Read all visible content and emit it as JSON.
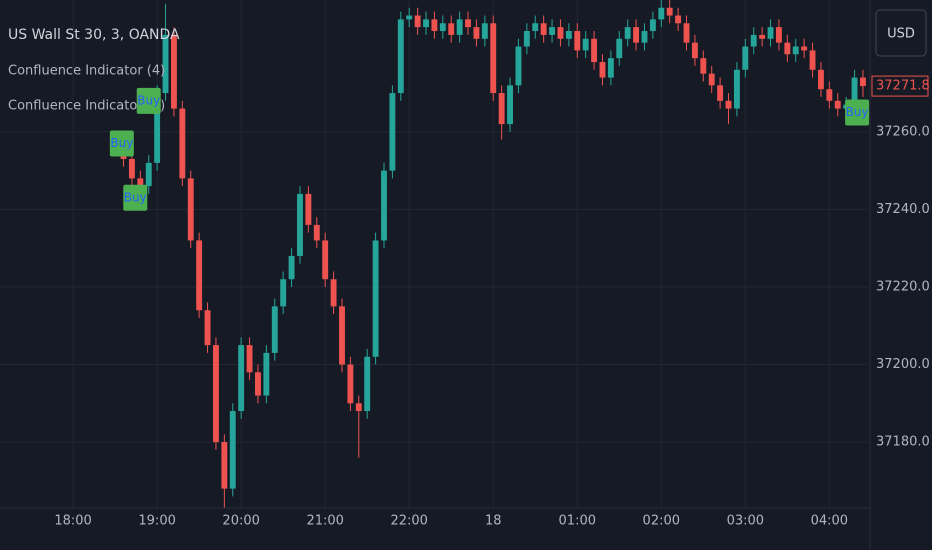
{
  "chart_data": {
    "type": "candlestick",
    "title": "US Wall St 30, 3, OANDA",
    "indicators": [
      "Confluence Indicator (4)",
      "Confluence Indicator (4)"
    ],
    "currency": "USD",
    "up_color": "#26a69a",
    "down_color": "#ef5350",
    "x": [
      0.5,
      0.6,
      0.7,
      0.8,
      0.9,
      1.0,
      1.1,
      1.2,
      1.3,
      1.4,
      1.5,
      1.6,
      1.7,
      1.8,
      1.9,
      2.0,
      2.1,
      2.2,
      2.3,
      2.4,
      2.5,
      2.6,
      2.7,
      2.8,
      2.9,
      3.0,
      3.1,
      3.2,
      3.3,
      3.4,
      3.5,
      3.6,
      3.7,
      3.8,
      3.9,
      4.0,
      4.1,
      4.2,
      4.3,
      4.4,
      4.5,
      4.6,
      4.7,
      4.8,
      4.9,
      5.0,
      5.1,
      5.2,
      5.3,
      5.4,
      5.5,
      5.6,
      5.7,
      5.8,
      5.9,
      6.0,
      6.1,
      6.2,
      6.3,
      6.4,
      6.5,
      6.6,
      6.7,
      6.8,
      6.9,
      7.0,
      7.1,
      7.2,
      7.3,
      7.4,
      7.5,
      7.6,
      7.7,
      7.8,
      7.9,
      8.0,
      8.1,
      8.2,
      8.3,
      8.4,
      8.5,
      8.6,
      8.7,
      8.8,
      8.9,
      9.0,
      9.1,
      9.2,
      9.3,
      9.4
    ],
    "open": [
      37258,
      37256,
      37253,
      37248,
      37246,
      37252,
      37270,
      37285,
      37266,
      37248,
      37232,
      37214,
      37205,
      37180,
      37168,
      37188,
      37205,
      37198,
      37192,
      37203,
      37215,
      37222,
      37228,
      37244,
      37236,
      37232,
      37222,
      37215,
      37200,
      37190,
      37188,
      37202,
      37232,
      37250,
      37270,
      37289,
      37290,
      37287,
      37289,
      37286,
      37288,
      37285,
      37289,
      37287,
      37284,
      37288,
      37270,
      37262,
      37272,
      37282,
      37286,
      37288,
      37285,
      37287,
      37284,
      37286,
      37281,
      37284,
      37278,
      37274,
      37279,
      37284,
      37287,
      37283,
      37286,
      37289,
      37292,
      37290,
      37288,
      37283,
      37279,
      37275,
      37272,
      37268,
      37266,
      37276,
      37282,
      37285,
      37284,
      37287,
      37283,
      37280,
      37282,
      37281,
      37276,
      37271,
      37268,
      37266,
      37267,
      37274
    ],
    "high": [
      37260,
      37258,
      37255,
      37250,
      37254,
      37272,
      37293,
      37287,
      37268,
      37250,
      37234,
      37216,
      37207,
      37182,
      37190,
      37207,
      37207,
      37200,
      37205,
      37217,
      37224,
      37230,
      37246,
      37246,
      37238,
      37234,
      37224,
      37217,
      37202,
      37192,
      37204,
      37234,
      37252,
      37272,
      37291,
      37292,
      37292,
      37291,
      37291,
      37290,
      37290,
      37291,
      37291,
      37289,
      37290,
      37290,
      37272,
      37274,
      37284,
      37288,
      37290,
      37290,
      37289,
      37289,
      37288,
      37288,
      37286,
      37286,
      37280,
      37281,
      37286,
      37289,
      37289,
      37288,
      37291,
      37294,
      37294,
      37292,
      37290,
      37285,
      37281,
      37277,
      37274,
      37270,
      37278,
      37284,
      37287,
      37287,
      37289,
      37289,
      37285,
      37284,
      37284,
      37283,
      37278,
      37273,
      37270,
      37269,
      37276,
      37276
    ],
    "low": [
      37254,
      37251,
      37246,
      37244,
      37244,
      37250,
      37268,
      37264,
      37246,
      37230,
      37212,
      37203,
      37178,
      37163,
      37166,
      37186,
      37196,
      37190,
      37190,
      37201,
      37213,
      37220,
      37226,
      37234,
      37230,
      37220,
      37213,
      37198,
      37188,
      37176,
      37186,
      37200,
      37230,
      37248,
      37268,
      37287,
      37285,
      37285,
      37284,
      37284,
      37283,
      37283,
      37285,
      37282,
      37282,
      37268,
      37258,
      37260,
      37270,
      37280,
      37284,
      37283,
      37283,
      37282,
      37282,
      37279,
      37279,
      37276,
      37272,
      37272,
      37277,
      37282,
      37281,
      37281,
      37284,
      37287,
      37288,
      37286,
      37281,
      37277,
      37273,
      37270,
      37266,
      37262,
      37264,
      37274,
      37280,
      37282,
      37282,
      37281,
      37278,
      37278,
      37279,
      37274,
      37269,
      37266,
      37264,
      37264,
      37265,
      37269
    ],
    "close": [
      37256,
      37253,
      37248,
      37246,
      37252,
      37270,
      37285,
      37266,
      37248,
      37232,
      37214,
      37205,
      37180,
      37168,
      37188,
      37205,
      37198,
      37192,
      37203,
      37215,
      37222,
      37228,
      37244,
      37236,
      37232,
      37222,
      37215,
      37200,
      37190,
      37188,
      37202,
      37232,
      37250,
      37270,
      37289,
      37290,
      37287,
      37289,
      37286,
      37288,
      37285,
      37289,
      37287,
      37284,
      37288,
      37270,
      37262,
      37272,
      37282,
      37286,
      37288,
      37285,
      37287,
      37284,
      37286,
      37281,
      37284,
      37278,
      37274,
      37279,
      37284,
      37287,
      37283,
      37286,
      37289,
      37292,
      37290,
      37288,
      37283,
      37279,
      37275,
      37272,
      37268,
      37266,
      37276,
      37282,
      37285,
      37284,
      37287,
      37283,
      37280,
      37282,
      37281,
      37276,
      37271,
      37268,
      37266,
      37267,
      37274,
      37271.8
    ],
    "annotations": [
      {
        "text": "Buy",
        "x": 0.58,
        "y": 37257
      },
      {
        "text": "Buy",
        "x": 0.9,
        "y": 37268
      },
      {
        "text": "Buy",
        "x": 0.74,
        "y": 37243
      },
      {
        "text": "Buy",
        "x": 9.33,
        "y": 37265
      }
    ],
    "xlim": [
      -0.87,
      9.46
    ],
    "ylim": [
      37163,
      37294
    ],
    "xticks": [
      {
        "value": 0,
        "label": "18:00"
      },
      {
        "value": 1,
        "label": "19:00"
      },
      {
        "value": 2,
        "label": "20:00"
      },
      {
        "value": 3,
        "label": "21:00"
      },
      {
        "value": 4,
        "label": "22:00"
      },
      {
        "value": 5,
        "label": "18"
      },
      {
        "value": 6,
        "label": "01:00"
      },
      {
        "value": 7,
        "label": "02:00"
      },
      {
        "value": 8,
        "label": "03:00"
      },
      {
        "value": 9,
        "label": "04:00"
      }
    ],
    "yticks": [
      {
        "value": 37180,
        "label": "37180.0"
      },
      {
        "value": 37200,
        "label": "37200.0"
      },
      {
        "value": 37220,
        "label": "37220.0"
      },
      {
        "value": 37240,
        "label": "37240.0"
      },
      {
        "value": 37260,
        "label": "37260.0"
      }
    ],
    "grid": true
  }
}
